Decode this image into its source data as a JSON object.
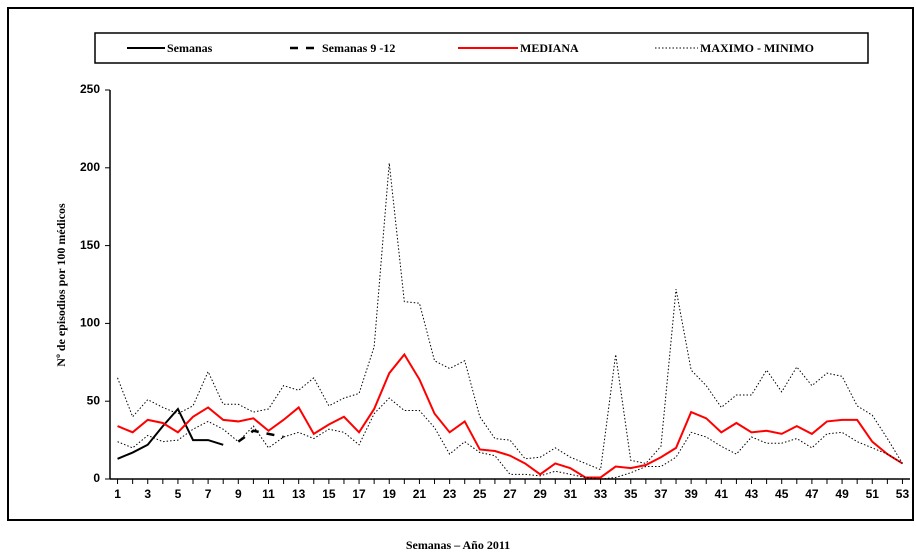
{
  "chart_data": {
    "type": "line",
    "x_label": "Semanas – Año 2011",
    "y_label": "Nº de episodios por 100 médicos",
    "x": [
      1,
      2,
      3,
      4,
      5,
      6,
      7,
      8,
      9,
      10,
      11,
      12,
      13,
      14,
      15,
      16,
      17,
      18,
      19,
      20,
      21,
      22,
      23,
      24,
      25,
      26,
      27,
      28,
      29,
      30,
      31,
      32,
      33,
      34,
      35,
      36,
      37,
      38,
      39,
      40,
      41,
      42,
      43,
      44,
      45,
      46,
      47,
      48,
      49,
      50,
      51,
      52,
      53
    ],
    "xlim": [
      0.5,
      53.5
    ],
    "xticks": [
      1,
      3,
      5,
      7,
      9,
      11,
      13,
      15,
      17,
      19,
      21,
      23,
      25,
      27,
      29,
      31,
      33,
      35,
      37,
      39,
      41,
      43,
      45,
      47,
      49,
      51,
      53
    ],
    "ylim": [
      0,
      250
    ],
    "yticks": [
      0,
      50,
      100,
      150,
      200,
      250
    ],
    "series": [
      {
        "name": "Semanas",
        "color": "#000000",
        "style": "solid",
        "values": [
          13,
          17,
          22,
          34,
          45,
          25,
          25,
          22,
          null,
          null,
          null,
          null,
          null,
          null,
          null,
          null,
          null,
          null,
          null,
          null,
          null,
          null,
          null,
          null,
          null,
          null,
          null,
          null,
          null,
          null,
          null,
          null,
          null,
          null,
          null,
          null,
          null,
          null,
          null,
          null,
          null,
          null,
          null,
          null,
          null,
          null,
          null,
          null,
          null,
          null,
          null,
          null,
          null
        ]
      },
      {
        "name": "Semanas 9 -12",
        "color": "#000000",
        "style": "dashed",
        "values": [
          null,
          null,
          null,
          null,
          null,
          null,
          null,
          null,
          24,
          31,
          29,
          27,
          null,
          null,
          null,
          null,
          null,
          null,
          null,
          null,
          null,
          null,
          null,
          null,
          null,
          null,
          null,
          null,
          null,
          null,
          null,
          null,
          null,
          null,
          null,
          null,
          null,
          null,
          null,
          null,
          null,
          null,
          null,
          null,
          null,
          null,
          null,
          null,
          null,
          null,
          null,
          null,
          null
        ]
      },
      {
        "name": "MEDIANA",
        "color": "#ff0000",
        "style": "solid",
        "values": [
          34,
          30,
          38,
          36,
          30,
          40,
          46,
          38,
          37,
          39,
          31,
          38,
          46,
          29,
          35,
          40,
          30,
          45,
          68,
          80,
          64,
          42,
          30,
          37,
          19,
          18,
          15,
          10,
          3,
          10,
          7,
          1,
          1,
          8,
          7,
          9,
          14,
          20,
          43,
          39,
          30,
          36,
          30,
          31,
          29,
          34,
          29,
          37,
          38,
          38,
          24,
          16,
          10
        ]
      },
      {
        "name": "MAXIMO - MINIMO",
        "color": "#000000",
        "style": "dotted",
        "high": [
          65,
          40,
          51,
          46,
          42,
          47,
          69,
          48,
          48,
          43,
          45,
          60,
          57,
          65,
          47,
          52,
          55,
          85,
          203,
          114,
          113,
          76,
          71,
          76,
          40,
          26,
          25,
          13,
          14,
          20,
          14,
          10,
          6,
          80,
          12,
          10,
          21,
          122,
          70,
          60,
          46,
          54,
          54,
          70,
          56,
          72,
          60,
          68,
          66,
          47,
          41,
          26,
          10
        ],
        "low": [
          24,
          20,
          28,
          24,
          25,
          32,
          37,
          32,
          24,
          34,
          20,
          27,
          30,
          26,
          32,
          30,
          22,
          42,
          52,
          44,
          44,
          33,
          16,
          24,
          17,
          15,
          3,
          3,
          2,
          5,
          3,
          1,
          0,
          1,
          4,
          8,
          8,
          14,
          30,
          27,
          21,
          16,
          27,
          23,
          23,
          26,
          20,
          29,
          30,
          24,
          20,
          16,
          10
        ]
      }
    ]
  }
}
